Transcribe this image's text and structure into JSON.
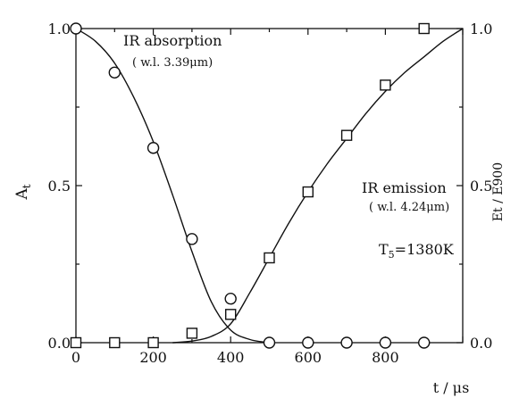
{
  "chart_data": {
    "type": "scatter",
    "x_ticks": [
      "0",
      "200",
      "400",
      "600",
      "800"
    ],
    "y_left_ticks": [
      "0.0",
      "0.5",
      "1.0"
    ],
    "y_right_ticks": [
      "0.0",
      "0.5",
      "1.0"
    ],
    "xlim": [
      0,
      1000
    ],
    "ylim": [
      0,
      1.0
    ],
    "xlabel": "t / μs",
    "ylabel_left": "A",
    "ylabel_left_sub": "t",
    "ylabel_right": "Et / E900",
    "series": [
      {
        "name": "IR absorption",
        "marker": "circle",
        "x": [
          0,
          100,
          200,
          300,
          400,
          500,
          600,
          700,
          800,
          900
        ],
        "y": [
          1.0,
          0.86,
          0.62,
          0.33,
          0.14,
          0.0,
          0.0,
          0.0,
          0.0,
          0.0
        ]
      },
      {
        "name": "IR emission",
        "marker": "square",
        "x": [
          0,
          100,
          200,
          300,
          400,
          500,
          600,
          700,
          800,
          900
        ],
        "y": [
          0.0,
          0.0,
          0.0,
          0.03,
          0.09,
          0.27,
          0.48,
          0.66,
          0.82,
          1.0
        ]
      }
    ],
    "fit_curves": [
      {
        "x": [
          0,
          50,
          100,
          150,
          200,
          250,
          300,
          350,
          400,
          450,
          500
        ],
        "y": [
          1.0,
          0.96,
          0.89,
          0.78,
          0.64,
          0.47,
          0.29,
          0.13,
          0.04,
          0.01,
          0.0
        ]
      },
      {
        "x": [
          250,
          300,
          350,
          400,
          450,
          500,
          550,
          600,
          650,
          700,
          750,
          800,
          850,
          900,
          950,
          1000
        ],
        "y": [
          0.0,
          0.005,
          0.02,
          0.06,
          0.16,
          0.27,
          0.38,
          0.48,
          0.57,
          0.65,
          0.73,
          0.8,
          0.86,
          0.91,
          0.96,
          1.0
        ]
      }
    ],
    "annotations": {
      "absorption_label": "IR absorption",
      "absorption_wl": "( w.l. 3.39μm)",
      "emission_label": "IR emission",
      "emission_wl": "( w.l. 4.24μm)",
      "temperature": "T",
      "temperature_sub": "5",
      "temperature_value": "=1380K"
    }
  }
}
